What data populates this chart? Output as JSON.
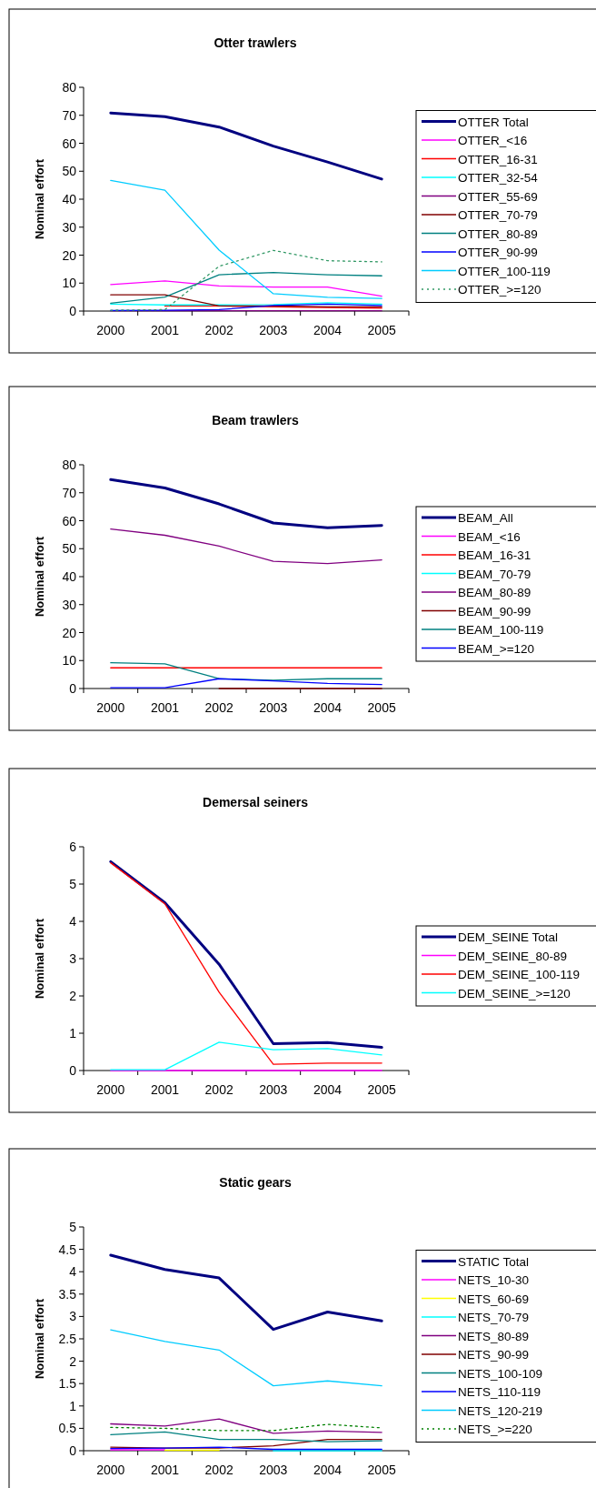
{
  "chart_data": [
    {
      "type": "line",
      "title": "Otter trawlers",
      "ylabel": "Nominal effort",
      "categories": [
        "2000",
        "2001",
        "2002",
        "2003",
        "2004",
        "2005"
      ],
      "ylim": [
        0,
        80
      ],
      "yticks": [
        0,
        10,
        20,
        30,
        40,
        50,
        60,
        70,
        80
      ],
      "legend": "right",
      "grid": false,
      "marker": "none",
      "series": [
        {
          "name": "OTTER Total",
          "color": "#000080",
          "values": [
            70.8,
            69.5,
            65.8,
            59,
            53.3,
            47.2
          ]
        },
        {
          "name": "OTTER_<16",
          "color": "#ff00ff",
          "values": [
            9.5,
            10.8,
            9,
            8.6,
            8.6,
            5.3
          ]
        },
        {
          "name": "OTTER_16-31",
          "color": "#ff0000",
          "values": [
            null,
            1.8,
            1.8,
            1.5,
            1.3,
            1
          ]
        },
        {
          "name": "OTTER_32-54",
          "color": "#00ffff",
          "values": [
            2.5,
            2.2,
            2.2,
            2.3,
            3,
            2.5
          ]
        },
        {
          "name": "OTTER_55-69",
          "color": "#800080",
          "values": [
            0.1,
            0.1,
            0.1,
            0.1,
            0.1,
            0.1
          ]
        },
        {
          "name": "OTTER_70-79",
          "color": "#800000",
          "values": [
            5.8,
            5.8,
            1.8,
            1.8,
            1.5,
            1.5
          ]
        },
        {
          "name": "OTTER_80-89",
          "color": "#008080",
          "values": [
            2.8,
            5,
            13,
            13.8,
            13,
            12.6
          ]
        },
        {
          "name": "OTTER_90-99",
          "color": "#0000ff",
          "values": [
            0.2,
            0.3,
            0.5,
            2,
            2.5,
            2
          ]
        },
        {
          "name": "OTTER_100-119",
          "color": "#00ccff",
          "values": [
            46.7,
            43.2,
            21.8,
            6.2,
            4.9,
            4.5
          ]
        },
        {
          "name": "OTTER_>=120",
          "color": "#339966",
          "line_style": "dotted",
          "values": [
            0.3,
            0.5,
            16,
            21.7,
            18,
            17.6
          ]
        }
      ]
    },
    {
      "type": "line",
      "title": "Beam trawlers",
      "ylabel": "Nominal effort",
      "categories": [
        "2000",
        "2001",
        "2002",
        "2003",
        "2004",
        "2005"
      ],
      "ylim": [
        0,
        80
      ],
      "yticks": [
        0,
        10,
        20,
        30,
        40,
        50,
        60,
        70,
        80
      ],
      "legend": "right",
      "grid": false,
      "marker": "none",
      "series": [
        {
          "name": "BEAM_All",
          "color": "#000080",
          "values": [
            74.7,
            71.7,
            66,
            59.2,
            57.5,
            58.3
          ]
        },
        {
          "name": "BEAM_<16",
          "color": "#ff00ff",
          "values": [
            null,
            null,
            null,
            null,
            null,
            null
          ]
        },
        {
          "name": "BEAM_16-31",
          "color": "#ff0000",
          "values": [
            7.4,
            7.4,
            7.4,
            7.4,
            7.4,
            7.4
          ]
        },
        {
          "name": "BEAM_70-79",
          "color": "#00ffff",
          "values": [
            null,
            null,
            null,
            null,
            null,
            null
          ]
        },
        {
          "name": "BEAM_80-89",
          "color": "#800080",
          "values": [
            57,
            54.8,
            50.9,
            45.5,
            44.7,
            46
          ]
        },
        {
          "name": "BEAM_90-99",
          "color": "#800000",
          "values": [
            null,
            null,
            0,
            0,
            0,
            0
          ]
        },
        {
          "name": "BEAM_100-119",
          "color": "#008080",
          "values": [
            9.2,
            8.8,
            3.5,
            3,
            3.5,
            3.5
          ]
        },
        {
          "name": "BEAM_>=120",
          "color": "#0000ff",
          "values": [
            0.3,
            0.3,
            3.5,
            2.7,
            1.8,
            1.4
          ]
        }
      ]
    },
    {
      "type": "line",
      "title": "Demersal seiners",
      "ylabel": "Nominal effort",
      "categories": [
        "2000",
        "2001",
        "2002",
        "2003",
        "2004",
        "2005"
      ],
      "ylim": [
        0,
        6
      ],
      "yticks": [
        0,
        1,
        2,
        3,
        4,
        5,
        6
      ],
      "legend": "right",
      "grid": false,
      "marker": "none",
      "series": [
        {
          "name": "DEM_SEINE Total",
          "color": "#000080",
          "values": [
            5.6,
            4.5,
            2.85,
            0.72,
            0.75,
            0.62
          ]
        },
        {
          "name": "DEM_SEINE_80-89",
          "color": "#ff00ff",
          "values": [
            0,
            0,
            0,
            0,
            0,
            0
          ]
        },
        {
          "name": "DEM_SEINE_100-119",
          "color": "#ff0000",
          "values": [
            5.57,
            4.47,
            2.1,
            0.17,
            0.2,
            0.2
          ]
        },
        {
          "name": "DEM_SEINE_>=120",
          "color": "#00ffff",
          "values": [
            0.02,
            0.02,
            0.76,
            0.56,
            0.59,
            0.42
          ]
        }
      ]
    },
    {
      "type": "line",
      "title": "Static gears",
      "ylabel": "Nominal effort",
      "categories": [
        "2000",
        "2001",
        "2002",
        "2003",
        "2004",
        "2005"
      ],
      "ylim": [
        0,
        5
      ],
      "yticks": [
        0,
        0.5,
        1,
        1.5,
        2,
        2.5,
        3,
        3.5,
        4,
        4.5,
        5
      ],
      "legend": "right",
      "grid": false,
      "marker": "none",
      "series": [
        {
          "name": "STATIC Total",
          "color": "#000080",
          "values": [
            4.37,
            4.05,
            3.86,
            2.71,
            3.1,
            2.9
          ]
        },
        {
          "name": "NETS_10-30",
          "color": "#ff00ff",
          "values": [
            0.02,
            0.02,
            null,
            null,
            null,
            null
          ]
        },
        {
          "name": "NETS_60-69",
          "color": "#ffff00",
          "values": [
            null,
            0.01,
            0.01,
            null,
            null,
            null
          ]
        },
        {
          "name": "NETS_70-79",
          "color": "#00ffff",
          "values": [
            null,
            null,
            null,
            0,
            0,
            0
          ]
        },
        {
          "name": "NETS_80-89",
          "color": "#800080",
          "values": [
            0.6,
            0.55,
            0.71,
            0.39,
            0.44,
            0.41
          ]
        },
        {
          "name": "NETS_90-99",
          "color": "#800000",
          "values": [
            0.08,
            0.06,
            0.06,
            0.11,
            0.25,
            0.25
          ]
        },
        {
          "name": "NETS_100-109",
          "color": "#008080",
          "values": [
            0.36,
            0.42,
            0.25,
            0.25,
            0.2,
            0.22
          ]
        },
        {
          "name": "NETS_110-119",
          "color": "#0000ff",
          "values": [
            0.05,
            0.06,
            0.08,
            0.03,
            0.03,
            0.03
          ]
        },
        {
          "name": "NETS_120-219",
          "color": "#00ccff",
          "values": [
            2.7,
            2.44,
            2.25,
            1.45,
            1.56,
            1.45
          ]
        },
        {
          "name": "NETS_>=220",
          "color": "#008000",
          "line_style": "dotted",
          "values": [
            0.52,
            0.5,
            0.45,
            0.45,
            0.59,
            0.51
          ]
        }
      ]
    }
  ]
}
